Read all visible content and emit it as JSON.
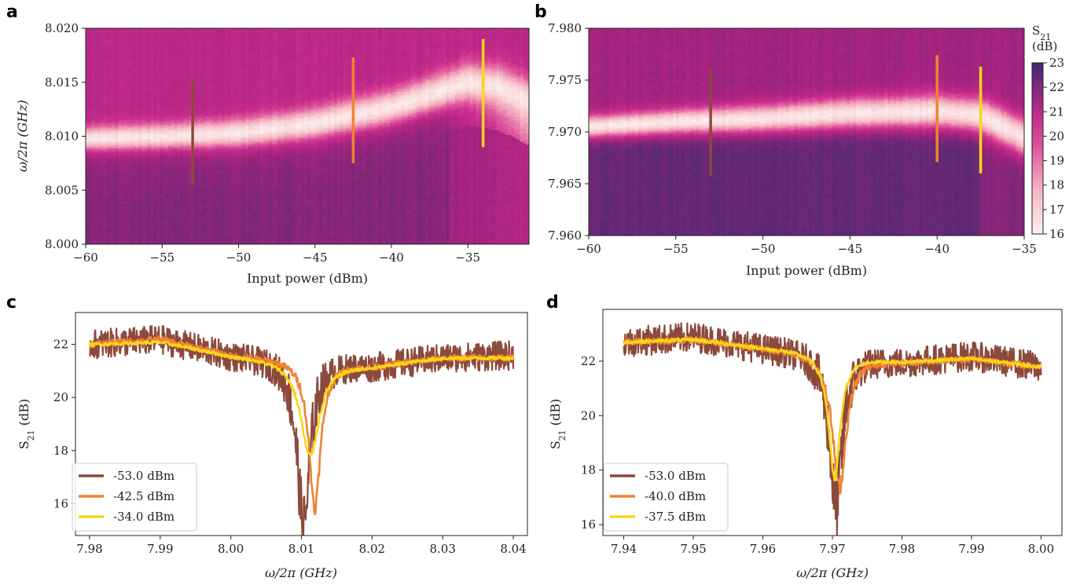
{
  "colors": {
    "low_power": "#8b4a3c",
    "mid_power": "#f28230",
    "high_power": "#fbd716",
    "map_low": "#fdf0ee",
    "map_mid": "#cc2c92",
    "map_high": "#3e2870"
  },
  "chart_data": [
    {
      "panel": "a",
      "type": "heatmap",
      "xlabel": "Input power (dBm)",
      "ylabel": "ω/2π (GHz)",
      "xlim": [
        -60,
        -31
      ],
      "ylim": [
        8.0,
        8.02
      ],
      "xticks": [
        "−60",
        "−55",
        "−50",
        "−45",
        "−40",
        "−35"
      ],
      "xtick_values": [
        -60,
        -55,
        -50,
        -45,
        -40,
        -35
      ],
      "yticks": [
        "8.000",
        "8.005",
        "8.010",
        "8.015",
        "8.020"
      ],
      "ytick_values": [
        8.0,
        8.005,
        8.01,
        8.015,
        8.02
      ],
      "resonance_track": {
        "power": [
          -60,
          -55,
          -50,
          -45,
          -40,
          -35,
          -33,
          -31
        ],
        "freq": [
          8.0098,
          8.01,
          8.0103,
          8.0112,
          8.0127,
          8.015,
          8.0146,
          8.0132
        ]
      },
      "markers": [
        {
          "power": -53.0,
          "from": 8.0055,
          "to": 8.0153,
          "color": "#8b4a3c"
        },
        {
          "power": -42.5,
          "from": 8.0075,
          "to": 8.0173,
          "color": "#f28230"
        },
        {
          "power": -34.0,
          "from": 8.009,
          "to": 8.019,
          "color": "#fbd716"
        }
      ]
    },
    {
      "panel": "b",
      "type": "heatmap",
      "xlabel": "Input power (dBm)",
      "ylabel": "",
      "xlim": [
        -60,
        -35
      ],
      "ylim": [
        7.96,
        7.98
      ],
      "xticks": [
        "−60",
        "−55",
        "−50",
        "−45",
        "−40",
        "−35"
      ],
      "xtick_values": [
        -60,
        -55,
        -50,
        -45,
        -40,
        -35
      ],
      "yticks": [
        "7.960",
        "7.965",
        "7.970",
        "7.975",
        "7.980"
      ],
      "ytick_values": [
        7.96,
        7.965,
        7.97,
        7.975,
        7.98
      ],
      "resonance_track": {
        "power": [
          -60,
          -55,
          -50,
          -45,
          -40,
          -37.5,
          -35
        ],
        "freq": [
          7.9705,
          7.971,
          7.9713,
          7.9718,
          7.972,
          7.9716,
          7.9695
        ]
      },
      "markers": [
        {
          "power": -53.0,
          "from": 7.9658,
          "to": 7.9761,
          "color": "#8b4a3c"
        },
        {
          "power": -40.0,
          "from": 7.9671,
          "to": 7.9774,
          "color": "#f28230"
        },
        {
          "power": -37.5,
          "from": 7.966,
          "to": 7.9763,
          "color": "#fbd716"
        }
      ],
      "colorbar": {
        "title": "S",
        "title_sub": "21",
        "unit": "(dB)",
        "range": [
          16,
          23
        ],
        "ticks": [
          "16",
          "17",
          "18",
          "19",
          "20",
          "21",
          "22",
          "23"
        ],
        "tick_values": [
          16,
          17,
          18,
          19,
          20,
          21,
          22,
          23
        ]
      }
    },
    {
      "panel": "c",
      "type": "line",
      "xlabel": "ω/2π (GHz)",
      "ylabel": "S",
      "ylabel_sub": "21",
      "ylabel_unit": " (dB)",
      "xlim": [
        7.978,
        8.042
      ],
      "ylim": [
        14.8,
        23.2
      ],
      "xticks": [
        "7.98",
        "7.99",
        "8.00",
        "8.01",
        "8.02",
        "8.03",
        "8.04"
      ],
      "xtick_values": [
        7.98,
        7.99,
        8.0,
        8.01,
        8.02,
        8.03,
        8.04
      ],
      "yticks": [
        "16",
        "18",
        "20",
        "22"
      ],
      "ytick_values": [
        16,
        18,
        20,
        22
      ],
      "series": [
        {
          "name": "-53.0 dBm",
          "color": "#8b4a3c",
          "noise": 0.55,
          "baseline": {
            "x": [
              7.98,
              7.99,
              8.0,
              8.02,
              8.03,
              8.04
            ],
            "y": [
              22.0,
              22.2,
              21.6,
              21.2,
              21.5,
              21.6
            ]
          },
          "dip": {
            "center": 8.0103,
            "depth": 6.2,
            "width": 0.0011
          }
        },
        {
          "name": "-42.5 dBm",
          "color": "#f28230",
          "noise": 0.12,
          "baseline": {
            "x": [
              7.98,
              7.99,
              8.0,
              8.02,
              8.03,
              8.04
            ],
            "y": [
              22.0,
              22.2,
              21.6,
              21.2,
              21.5,
              21.5
            ]
          },
          "dip": {
            "center": 8.0119,
            "depth": 5.5,
            "width": 0.001
          }
        },
        {
          "name": "-34.0 dBm",
          "color": "#fbd716",
          "noise": 0.06,
          "baseline": {
            "x": [
              7.98,
              7.99,
              8.0,
              8.02,
              8.03,
              8.04
            ],
            "y": [
              22.0,
              22.1,
              21.6,
              21.2,
              21.5,
              21.5
            ]
          },
          "dip": {
            "center": 8.0112,
            "depth": 3.6,
            "width": 0.0016
          }
        }
      ]
    },
    {
      "panel": "d",
      "type": "line",
      "xlabel": "ω/2π (GHz)",
      "ylabel": "S",
      "ylabel_sub": "21",
      "ylabel_unit": " (dB)",
      "xlim": [
        7.937,
        8.003
      ],
      "ylim": [
        15.6,
        23.9
      ],
      "xticks": [
        "7.94",
        "7.95",
        "7.96",
        "7.97",
        "7.98",
        "7.99",
        "8.00"
      ],
      "xtick_values": [
        7.94,
        7.95,
        7.96,
        7.97,
        7.98,
        7.99,
        8.0
      ],
      "yticks": [
        "16",
        "18",
        "20",
        "22"
      ],
      "ytick_values": [
        16,
        18,
        20,
        22
      ],
      "series": [
        {
          "name": "-53.0 dBm",
          "color": "#8b4a3c",
          "noise": 0.55,
          "baseline": {
            "x": [
              7.94,
              7.95,
              7.96,
              7.965,
              7.98,
              7.99,
              8.0
            ],
            "y": [
              22.7,
              22.9,
              22.5,
              22.4,
              22.0,
              22.2,
              21.8
            ]
          },
          "dip": {
            "center": 7.9705,
            "depth": 5.6,
            "width": 0.0011
          }
        },
        {
          "name": "-40.0 dBm",
          "color": "#f28230",
          "noise": 0.12,
          "baseline": {
            "x": [
              7.94,
              7.95,
              7.96,
              7.965,
              7.98,
              7.99,
              8.0
            ],
            "y": [
              22.7,
              22.8,
              22.5,
              22.4,
              22.0,
              22.1,
              21.8
            ]
          },
          "dip": {
            "center": 7.971,
            "depth": 4.9,
            "width": 0.0012
          }
        },
        {
          "name": "-37.5 dBm",
          "color": "#fbd716",
          "noise": 0.06,
          "baseline": {
            "x": [
              7.94,
              7.95,
              7.96,
              7.965,
              7.98,
              7.99,
              8.0
            ],
            "y": [
              22.7,
              22.8,
              22.5,
              22.4,
              22.0,
              22.1,
              21.8
            ]
          },
          "dip": {
            "center": 7.9703,
            "depth": 4.6,
            "width": 0.001
          }
        }
      ]
    }
  ]
}
